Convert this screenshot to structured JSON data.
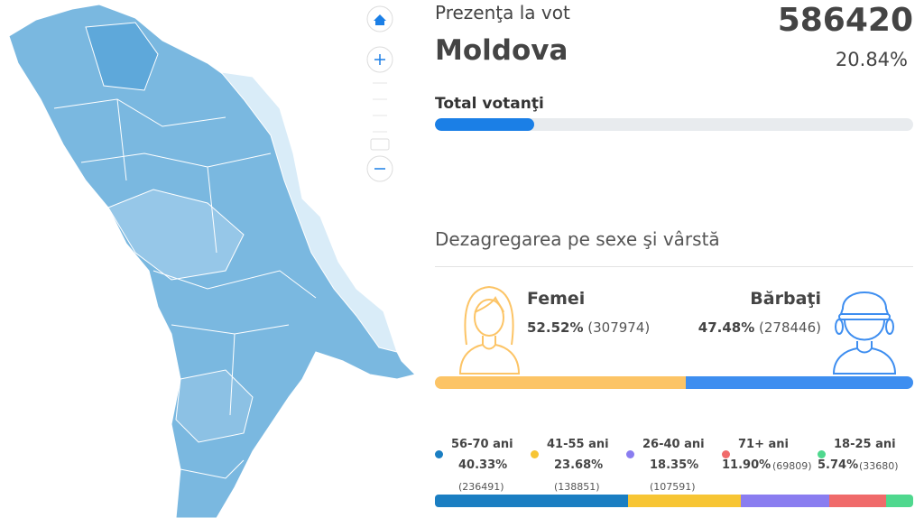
{
  "turnout": {
    "title": "Prezenţa la vot",
    "region": "Moldova",
    "voters": "586420",
    "percent": {
      "value": 20.84,
      "label": "20.84%"
    },
    "bar_label": "Total votanţi",
    "bar_color": "#1b7fe6"
  },
  "breakdown": {
    "title": "Dezagregarea pe sexe şi vârstă",
    "gender": [
      {
        "name": "Femei",
        "percent": {
          "value": 52.52,
          "label": "52.52%"
        },
        "count": "(307974)",
        "color": "#fcc466"
      },
      {
        "name": "Bărbaţi",
        "percent": {
          "value": 47.48,
          "label": "47.48%"
        },
        "count": "(278446)",
        "color": "#3e8ef0"
      }
    ],
    "age": [
      {
        "name": "56-70 ani",
        "percent": {
          "value": 40.33,
          "label": "40.33%"
        },
        "count": "(236491)",
        "color": "#1a7ec2"
      },
      {
        "name": "41-55 ani",
        "percent": {
          "value": 23.68,
          "label": "23.68%"
        },
        "count": "(138851)",
        "color": "#f7c534"
      },
      {
        "name": "26-40 ani",
        "percent": {
          "value": 18.35,
          "label": "18.35%"
        },
        "count": "(107591)",
        "color": "#8a7df0"
      },
      {
        "name": "71+ ani",
        "percent": {
          "value": 11.9,
          "label": "11.90%"
        },
        "count": "(69809)",
        "color": "#f06a6a"
      },
      {
        "name": "18-25 ani",
        "percent": {
          "value": 5.74,
          "label": "5.74%"
        },
        "count": "(33680)",
        "color": "#4fd88e"
      }
    ]
  }
}
